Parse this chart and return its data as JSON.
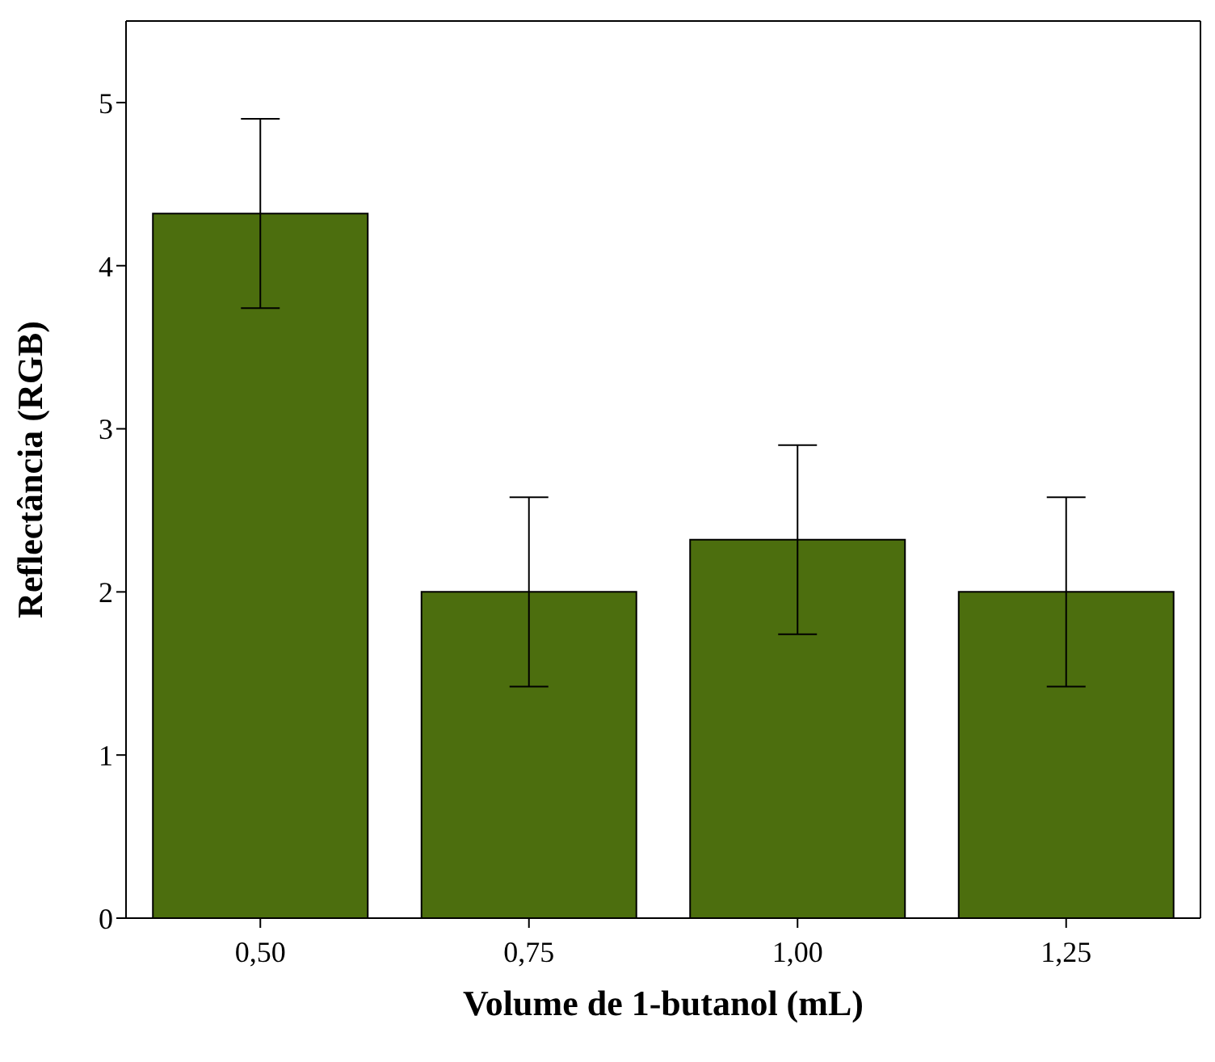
{
  "chart_data": {
    "type": "bar",
    "xlabel": "Volume de 1-butanol (mL)",
    "ylabel": "Reflectância (RGB)",
    "categories": [
      "0,50",
      "0,75",
      "1,00",
      "1,25"
    ],
    "values": [
      4.32,
      2.0,
      2.32,
      2.0
    ],
    "errors": [
      0.58,
      0.58,
      0.58,
      0.58
    ],
    "color": "#4c6e0e",
    "ylim": [
      0,
      5.5
    ],
    "yticks": [
      0,
      1,
      2,
      3,
      4,
      5
    ],
    "grid": false
  }
}
